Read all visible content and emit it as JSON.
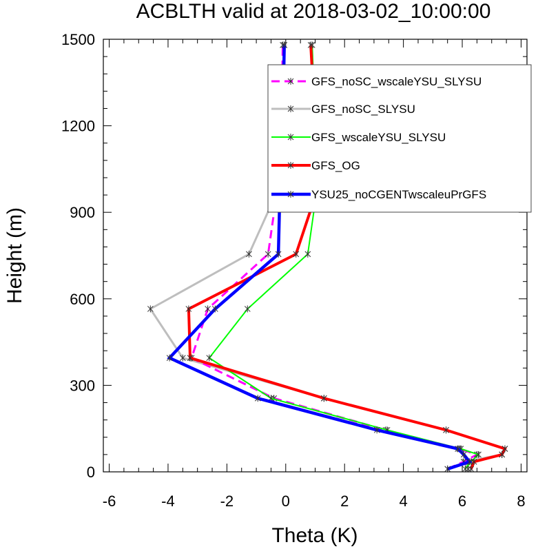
{
  "chart_data": {
    "type": "line",
    "title": "ACBLTH valid at 2018-03-02_10:00:00",
    "xlabel": "Theta (K)",
    "ylabel": "Height (m)",
    "xlim": [
      -6.2,
      8.2
    ],
    "ylim": [
      0,
      1500
    ],
    "x_ticks": [
      "-6",
      "-4",
      "-2",
      "0",
      "2",
      "4",
      "6",
      "8"
    ],
    "y_ticks": [
      "0",
      "300",
      "600",
      "900",
      "1200",
      "1500"
    ],
    "legend_position": "top-right",
    "grid": false,
    "series": [
      {
        "name": "GFS_noSC_wscaleYSU_SLYSU",
        "color": "#ff00ff",
        "style": "dashed",
        "x": [
          5.5,
          6.05,
          6.5,
          5.9,
          3.4,
          -0.4,
          -3.2,
          -2.65,
          -0.6,
          -0.3,
          -0.15,
          -0.1
        ],
        "y": [
          10,
          35,
          60,
          80,
          145,
          255,
          395,
          565,
          755,
          970,
          1205,
          1480
        ]
      },
      {
        "name": "GFS_noSC_SLYSU",
        "color": "#bebebe",
        "style": "solid",
        "x": [
          6.2,
          6.1,
          7.35,
          7.45,
          5.45,
          1.3,
          -3.5,
          -4.6,
          -1.25,
          -0.3,
          -0.1,
          -0.05
        ],
        "y": [
          10,
          35,
          60,
          80,
          145,
          255,
          395,
          565,
          755,
          970,
          1205,
          1480
        ]
      },
      {
        "name": "GFS_wscaleYSU_SLYSU",
        "color": "#00ff00",
        "style": "solid",
        "x": [
          6.1,
          6.3,
          6.55,
          5.95,
          3.45,
          -0.5,
          -2.6,
          -1.3,
          0.75,
          1.05,
          1.0,
          0.9
        ],
        "y": [
          10,
          35,
          60,
          80,
          145,
          255,
          395,
          565,
          755,
          970,
          1205,
          1480
        ]
      },
      {
        "name": "GFS_OG",
        "color": "#ff0000",
        "style": "solid",
        "x": [
          6.3,
          6.4,
          7.35,
          7.45,
          5.45,
          1.3,
          -3.25,
          -3.3,
          0.35,
          1.05,
          1.0,
          0.85
        ],
        "y": [
          10,
          35,
          60,
          80,
          145,
          255,
          395,
          565,
          755,
          970,
          1205,
          1480
        ]
      },
      {
        "name": "YSU25_noCGENTwscaleuPrGFS",
        "color": "#0000ff",
        "style": "solid",
        "x": [
          5.5,
          6.25,
          6.05,
          5.85,
          3.1,
          -0.95,
          -3.95,
          -2.4,
          -0.25,
          -0.2,
          -0.1,
          -0.05
        ],
        "y": [
          10,
          35,
          60,
          80,
          145,
          255,
          395,
          565,
          755,
          970,
          1205,
          1480
        ]
      }
    ]
  }
}
